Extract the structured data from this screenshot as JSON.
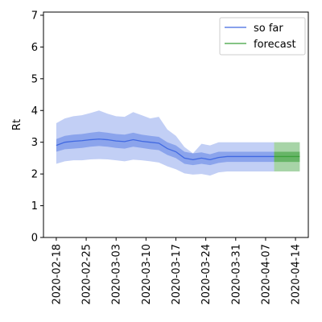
{
  "chart_data": {
    "type": "line",
    "title": "",
    "xlabel": "",
    "ylabel": "Rt",
    "xlim": [
      "2020-02-15",
      "2020-04-17"
    ],
    "ylim": [
      0,
      7.1
    ],
    "yticks": [
      0,
      1,
      2,
      3,
      4,
      5,
      6,
      7
    ],
    "xticks": [
      "2020-02-18",
      "2020-02-25",
      "2020-03-03",
      "2020-03-10",
      "2020-03-17",
      "2020-03-24",
      "2020-03-31",
      "2020-04-07",
      "2020-04-14"
    ],
    "legend": {
      "location": "top-right",
      "entries": [
        "so far",
        "forecast"
      ]
    },
    "colors": {
      "so_far": "#4169e1",
      "forecast": "#3ca03c",
      "axis": "#000000"
    },
    "series": [
      {
        "name": "so far",
        "points": [
          {
            "x": "2020-02-18",
            "mean": 2.9,
            "inner_low": 2.7,
            "inner_high": 3.1,
            "outer_low": 2.32,
            "outer_high": 3.6
          },
          {
            "x": "2020-02-20",
            "mean": 3.0,
            "inner_low": 2.78,
            "inner_high": 3.2,
            "outer_low": 2.4,
            "outer_high": 3.75
          },
          {
            "x": "2020-02-22",
            "mean": 3.03,
            "inner_low": 2.8,
            "inner_high": 3.24,
            "outer_low": 2.43,
            "outer_high": 3.82
          },
          {
            "x": "2020-02-24",
            "mean": 3.05,
            "inner_low": 2.82,
            "inner_high": 3.26,
            "outer_low": 2.43,
            "outer_high": 3.85
          },
          {
            "x": "2020-02-26",
            "mean": 3.08,
            "inner_low": 2.86,
            "inner_high": 3.3,
            "outer_low": 2.46,
            "outer_high": 3.92
          },
          {
            "x": "2020-02-28",
            "mean": 3.1,
            "inner_low": 2.88,
            "inner_high": 3.33,
            "outer_low": 2.47,
            "outer_high": 4.0
          },
          {
            "x": "2020-03-01",
            "mean": 3.08,
            "inner_low": 2.86,
            "inner_high": 3.3,
            "outer_low": 2.46,
            "outer_high": 3.9
          },
          {
            "x": "2020-03-03",
            "mean": 3.04,
            "inner_low": 2.82,
            "inner_high": 3.26,
            "outer_low": 2.43,
            "outer_high": 3.82
          },
          {
            "x": "2020-03-05",
            "mean": 3.02,
            "inner_low": 2.8,
            "inner_high": 3.24,
            "outer_low": 2.4,
            "outer_high": 3.8
          },
          {
            "x": "2020-03-07",
            "mean": 3.08,
            "inner_low": 2.86,
            "inner_high": 3.3,
            "outer_low": 2.45,
            "outer_high": 3.95
          },
          {
            "x": "2020-03-09",
            "mean": 3.03,
            "inner_low": 2.82,
            "inner_high": 3.24,
            "outer_low": 2.43,
            "outer_high": 3.85
          },
          {
            "x": "2020-03-11",
            "mean": 3.0,
            "inner_low": 2.78,
            "inner_high": 3.2,
            "outer_low": 2.4,
            "outer_high": 3.75
          },
          {
            "x": "2020-03-13",
            "mean": 2.97,
            "inner_low": 2.75,
            "inner_high": 3.17,
            "outer_low": 2.36,
            "outer_high": 3.8
          },
          {
            "x": "2020-03-15",
            "mean": 2.8,
            "inner_low": 2.6,
            "inner_high": 3.0,
            "outer_low": 2.24,
            "outer_high": 3.4
          },
          {
            "x": "2020-03-17",
            "mean": 2.7,
            "inner_low": 2.5,
            "inner_high": 2.9,
            "outer_low": 2.15,
            "outer_high": 3.2
          },
          {
            "x": "2020-03-19",
            "mean": 2.5,
            "inner_low": 2.32,
            "inner_high": 2.7,
            "outer_low": 2.02,
            "outer_high": 2.85
          },
          {
            "x": "2020-03-21",
            "mean": 2.45,
            "inner_low": 2.28,
            "inner_high": 2.65,
            "outer_low": 1.98,
            "outer_high": 2.65
          },
          {
            "x": "2020-03-23",
            "mean": 2.5,
            "inner_low": 2.32,
            "inner_high": 2.68,
            "outer_low": 2.0,
            "outer_high": 2.95
          },
          {
            "x": "2020-03-25",
            "mean": 2.45,
            "inner_low": 2.28,
            "inner_high": 2.62,
            "outer_low": 1.95,
            "outer_high": 2.9
          },
          {
            "x": "2020-03-27",
            "mean": 2.52,
            "inner_low": 2.35,
            "inner_high": 2.7,
            "outer_low": 2.05,
            "outer_high": 3.0
          },
          {
            "x": "2020-03-29",
            "mean": 2.55,
            "inner_low": 2.38,
            "inner_high": 2.7,
            "outer_low": 2.08,
            "outer_high": 3.0
          },
          {
            "x": "2020-04-01",
            "mean": 2.55,
            "inner_low": 2.38,
            "inner_high": 2.7,
            "outer_low": 2.08,
            "outer_high": 3.0
          },
          {
            "x": "2020-04-04",
            "mean": 2.55,
            "inner_low": 2.38,
            "inner_high": 2.7,
            "outer_low": 2.08,
            "outer_high": 3.0
          },
          {
            "x": "2020-04-09",
            "mean": 2.55,
            "inner_low": 2.38,
            "inner_high": 2.7,
            "outer_low": 2.08,
            "outer_high": 3.0
          }
        ]
      },
      {
        "name": "forecast",
        "x_start": "2020-04-09",
        "x_end": "2020-04-15",
        "mean": 2.55,
        "inner_low": 2.38,
        "inner_high": 2.7,
        "outer_low": 2.08,
        "outer_high": 3.0
      }
    ]
  }
}
